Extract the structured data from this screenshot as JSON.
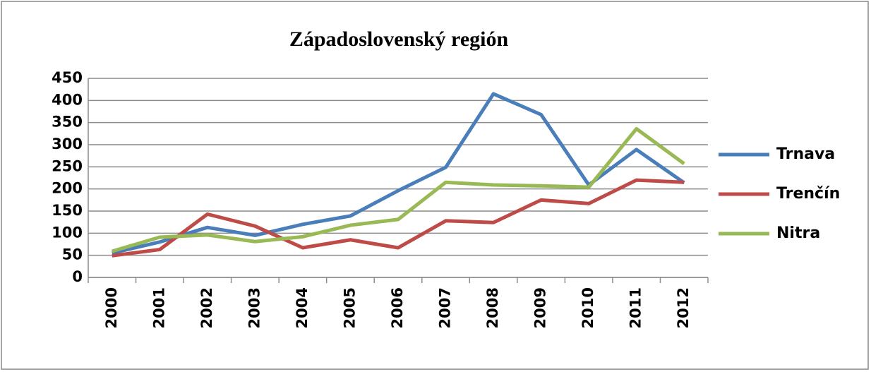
{
  "chart_data": {
    "type": "line",
    "title": "Západoslovenský región",
    "categories": [
      "2000",
      "2001",
      "2002",
      "2003",
      "2004",
      "2005",
      "2006",
      "2007",
      "2008",
      "2009",
      "2010",
      "2011",
      "2012"
    ],
    "series": [
      {
        "name": "Trnava",
        "color": "#4a7ebb",
        "values": [
          55,
          80,
          113,
          95,
          120,
          139,
          196,
          249,
          415,
          368,
          209,
          289,
          214
        ]
      },
      {
        "name": "Trenčín",
        "color": "#be4b48",
        "values": [
          49,
          63,
          143,
          116,
          67,
          85,
          67,
          128,
          124,
          175,
          167,
          220,
          215
        ]
      },
      {
        "name": "Nitra",
        "color": "#98b954",
        "values": [
          59,
          91,
          96,
          81,
          92,
          118,
          131,
          215,
          209,
          207,
          204,
          336,
          257
        ]
      }
    ],
    "ylim": [
      0,
      450
    ],
    "yticks": [
      0,
      50,
      100,
      150,
      200,
      250,
      300,
      350,
      400,
      450
    ],
    "grid": true,
    "legend": "right"
  }
}
